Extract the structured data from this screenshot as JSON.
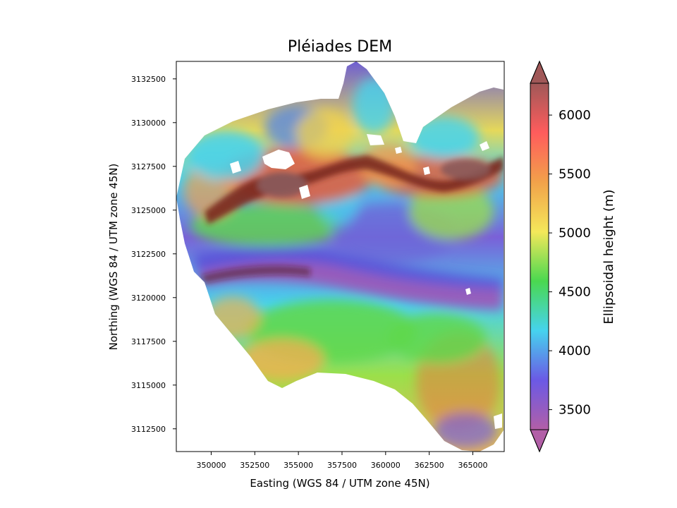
{
  "title": "Pléiades DEM",
  "xlabel": "Easting (WGS 84 / UTM zone 45N)",
  "ylabel": "Northing (WGS 84 / UTM zone 45N)",
  "x_ticks": [
    "350000",
    "352500",
    "355000",
    "357500",
    "360000",
    "362500",
    "365000"
  ],
  "y_ticks": [
    "3132500",
    "3130000",
    "3127500",
    "3125000",
    "3122500",
    "3120000",
    "3117500",
    "3115000",
    "3112500"
  ],
  "colorbar": {
    "label": "Ellipsoidal height (m)",
    "ticks": [
      "3500",
      "4000",
      "4500",
      "5000",
      "5500",
      "6000"
    ],
    "range": [
      3330,
      6270
    ],
    "extend": "both",
    "colors": [
      "#b25fa7",
      "#6b59e5",
      "#46d3ee",
      "#4ad850",
      "#f4e85a",
      "#f2a24a",
      "#ff5c5c",
      "#a05858"
    ]
  },
  "chart_data": {
    "type": "heatmap",
    "title": "Pléiades DEM",
    "xlabel": "Easting (WGS 84 / UTM zone 45N)",
    "ylabel": "Northing (WGS 84 / UTM zone 45N)",
    "xlim": [
      348000,
      366800
    ],
    "ylim": [
      3111200,
      3133500
    ],
    "value_label": "Ellipsoidal height (m)",
    "value_range": [
      3330,
      6270
    ],
    "features": [
      {
        "kind": "valley-low",
        "height": 3500
      },
      {
        "kind": "ridge-high",
        "height": 6100
      },
      {
        "kind": "nodata",
        "color": "#ffffff"
      }
    ]
  }
}
